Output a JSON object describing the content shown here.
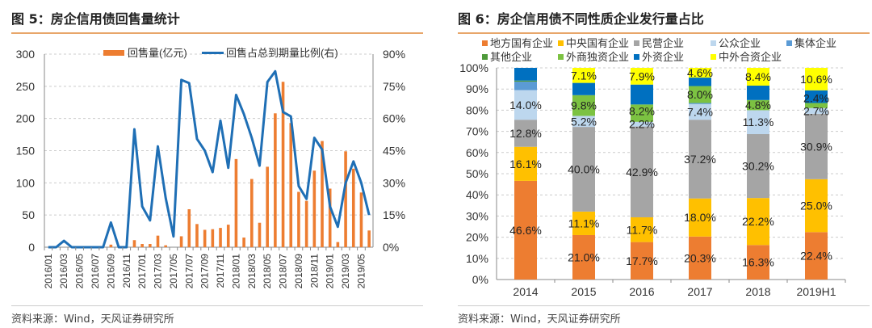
{
  "left": {
    "title": "图 5：房企信用债回售量统计",
    "source": "资料来源：Wind，天风证券研究所"
  },
  "right": {
    "title": "图 6：房企信用债不同性质企业发行量占比",
    "source": "资料来源：Wind，天风证券研究所"
  },
  "chart_data": [
    {
      "type": "bar+line",
      "title": "图 5：房企信用债回售量统计",
      "x": [
        "2016/01",
        "2016/02",
        "2016/03",
        "2016/04",
        "2016/05",
        "2016/06",
        "2016/07",
        "2016/08",
        "2016/09",
        "2016/10",
        "2016/11",
        "2016/12",
        "2017/01",
        "2017/02",
        "2017/03",
        "2017/04",
        "2017/05",
        "2017/06",
        "2017/07",
        "2017/08",
        "2017/09",
        "2017/10",
        "2017/11",
        "2017/12",
        "2018/01",
        "2018/02",
        "2018/03",
        "2018/04",
        "2018/05",
        "2018/06",
        "2018/07",
        "2018/08",
        "2018/09",
        "2018/10",
        "2018/11",
        "2018/12",
        "2019/01",
        "2019/02",
        "2019/03",
        "2019/04",
        "2019/05",
        "2019/06"
      ],
      "xticks": [
        "2016/01",
        "2016/03",
        "2016/05",
        "2016/07",
        "2016/09",
        "2016/11",
        "2017/01",
        "2017/03",
        "2017/05",
        "2017/07",
        "2017/09",
        "2017/11",
        "2018/01",
        "2018/03",
        "2018/05",
        "2018/07",
        "2018/09",
        "2018/11",
        "2019/01",
        "2019/03",
        "2019/05"
      ],
      "series": [
        {
          "name": "回售量(亿元)",
          "type": "bar",
          "axis": "left",
          "color": "#ED7D31",
          "values": [
            0,
            0,
            0,
            0,
            0,
            0,
            0,
            0,
            4,
            0,
            0,
            11,
            5,
            5,
            18,
            3,
            0,
            17,
            59,
            36,
            27,
            28,
            30,
            35,
            137,
            15,
            106,
            38,
            125,
            208,
            257,
            193,
            86,
            72,
            119,
            165,
            91,
            8,
            149,
            122,
            85,
            26
          ]
        },
        {
          "name": "回售占总到期量比例(右)",
          "type": "line",
          "axis": "right",
          "color": "#1F6FB5",
          "values": [
            0,
            0,
            3,
            0,
            0,
            0,
            0,
            0,
            11.5,
            0,
            0,
            55,
            19,
            12.5,
            47,
            23,
            5,
            78,
            76.5,
            50.5,
            45,
            35,
            59,
            37,
            71,
            62,
            51,
            38,
            77,
            82,
            63,
            61,
            28.5,
            22.5,
            51,
            45.5,
            19,
            9.5,
            30,
            40,
            30,
            15
          ]
        }
      ],
      "ylim": [
        0,
        300
      ],
      "yticks": [
        0,
        50,
        100,
        150,
        200,
        250,
        300
      ],
      "y2lim": [
        0,
        90
      ],
      "y2ticks": [
        "0%",
        "15%",
        "30%",
        "45%",
        "60%",
        "75%",
        "90%"
      ],
      "grid": true,
      "legend": "top"
    },
    {
      "type": "stacked-bar",
      "title": "图 6：房企信用债不同性质企业发行量占比",
      "categories": [
        "2014",
        "2015",
        "2016",
        "2017",
        "2018",
        "2019H1"
      ],
      "yticks": [
        "0%",
        "10%",
        "20%",
        "30%",
        "40%",
        "50%",
        "60%",
        "70%",
        "80%",
        "90%",
        "100%"
      ],
      "ylim": [
        0,
        100
      ],
      "legend": "top",
      "grid": true,
      "series": [
        {
          "name": "地方国有企业",
          "color": "#ED7D31",
          "values": [
            46.6,
            21.0,
            17.7,
            20.3,
            16.3,
            22.4
          ],
          "labels": [
            "46.6%",
            "21.0%",
            "17.7%",
            "20.3%",
            "16.3%",
            "22.4%"
          ]
        },
        {
          "name": "中央国有企业",
          "color": "#FFC000",
          "values": [
            16.1,
            11.1,
            11.7,
            18.0,
            22.2,
            25.0
          ],
          "labels": [
            "16.1%",
            "11.1%",
            "11.7%",
            "18.0%",
            "22.2%",
            "25.0%"
          ]
        },
        {
          "name": "民营企业",
          "color": "#A5A5A5",
          "values": [
            12.8,
            40.0,
            42.9,
            37.2,
            30.2,
            30.9
          ],
          "labels": [
            "12.8%",
            "40.0%",
            "42.9%",
            "37.2%",
            "30.2%",
            "30.9%"
          ]
        },
        {
          "name": "公众企业",
          "color": "#BDD7EE",
          "values": [
            14.0,
            5.2,
            2.2,
            7.4,
            11.3,
            2.7
          ],
          "labels": [
            "14.0%",
            "5.2%",
            "2.2%",
            "7.4%",
            "11.3%",
            "2.7%"
          ]
        },
        {
          "name": "集体企业",
          "color": "#5B9BD5",
          "values": [
            4.0,
            0,
            0,
            0.5,
            0,
            0
          ],
          "labels": [
            null,
            null,
            null,
            null,
            null,
            null
          ]
        },
        {
          "name": "其他企业",
          "color": "#4E9A3A",
          "values": [
            0.5,
            0,
            0,
            0,
            0,
            0
          ],
          "labels": [
            null,
            null,
            null,
            null,
            null,
            null
          ]
        },
        {
          "name": "外商独资企业",
          "color": "#7CC242",
          "values": [
            0,
            9.8,
            8.2,
            8.0,
            4.8,
            2.4
          ],
          "labels": [
            null,
            "9.8%",
            "8.2%",
            "8.0%",
            "4.8%",
            "2.4%"
          ]
        },
        {
          "name": "外资企业",
          "color": "#0070C0",
          "values": [
            6.0,
            5.8,
            9.4,
            4.0,
            6.8,
            6.0
          ],
          "labels": [
            null,
            null,
            null,
            null,
            null,
            null
          ]
        },
        {
          "name": "中外合资企业",
          "color": "#FFFF00",
          "values": [
            0,
            7.1,
            7.9,
            4.6,
            8.4,
            10.6
          ],
          "labels": [
            null,
            "7.1%",
            "7.9%",
            "4.6%",
            "8.4%",
            "10.6%"
          ]
        }
      ]
    }
  ]
}
